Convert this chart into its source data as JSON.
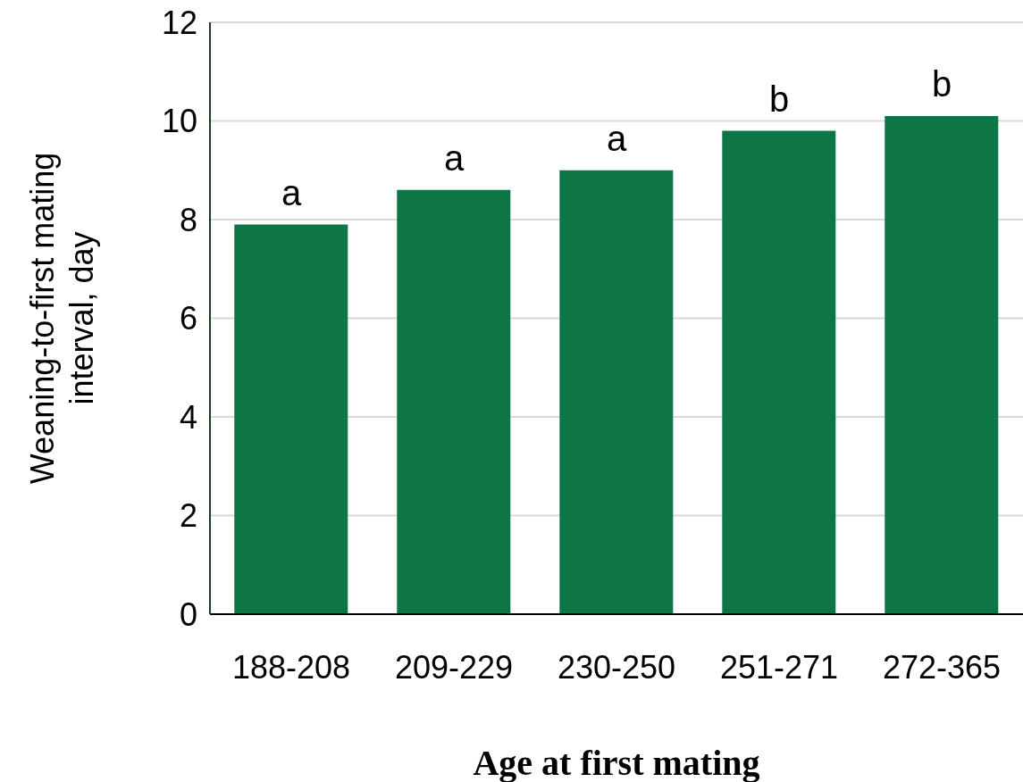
{
  "chart_data": {
    "type": "bar",
    "xlabel": "Age at first mating",
    "ylabel": "Weaning-to-first mating interval, day",
    "categories": [
      "188-208",
      "209-229",
      "230-250",
      "251-271",
      "272-365"
    ],
    "values": [
      7.9,
      8.6,
      9.0,
      9.8,
      10.1
    ],
    "color": "#0e7544",
    "ylim": [
      0,
      12
    ],
    "yticks": [
      0,
      2,
      4,
      6,
      8,
      10,
      12
    ],
    "grid": "y",
    "annotations": [
      {
        "text": "a",
        "x": "188-208",
        "y": 7.9
      },
      {
        "text": "a",
        "x": "209-229",
        "y": 8.6
      },
      {
        "text": "a",
        "x": "230-250",
        "y": 9.0
      },
      {
        "text": "b",
        "x": "251-271",
        "y": 9.8
      },
      {
        "text": "b",
        "x": "272-365",
        "y": 10.1
      }
    ]
  }
}
